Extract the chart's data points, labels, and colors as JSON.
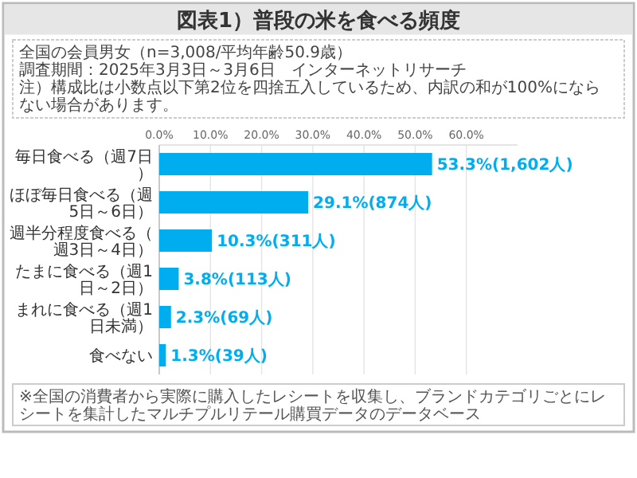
{
  "chart_data": {
    "type": "bar",
    "orientation": "horizontal",
    "title": "図表1）普段の米を食べる頻度",
    "subtitle": "全国の会員男女（n=3,008/平均年齢50.9歳）",
    "annotations": [
      "調査期間：2025年3月3日～3月6日　インターネットリサーチ",
      "注）構成比は小数点以下第2位を四捨五入しているため、内訳の和が100%にならない場合があります。",
      "※全国の消費者から実際に購入したレシートを収集し、ブランドカテゴリごとにレシートを集計したマルチプルリテール購買データのデータベース"
    ],
    "categories": [
      "毎日食べる（週7日）",
      "ほぼ毎日食べる（週5日～6日）",
      "週半分程度食べる（週3日～4日）",
      "たまに食べる（週1日～2日）",
      "まれに食べる（週1日未満）",
      "食べない"
    ],
    "values": [
      53.3,
      29.1,
      10.3,
      3.8,
      2.3,
      1.3
    ],
    "value_labels": [
      "53.3%(1,602人)",
      "29.1%(874人)",
      "10.3%(311人)",
      "3.8%(113人)",
      "2.3%(69人)",
      "1.3%(39人)"
    ],
    "color": "#00aeef",
    "xlim": [
      0,
      70
    ],
    "xticks": [
      {
        "value": 0,
        "label": "0.0%"
      },
      {
        "value": 10,
        "label": "10.0%"
      },
      {
        "value": 20,
        "label": "20.0%"
      },
      {
        "value": 30,
        "label": "30.0%"
      },
      {
        "value": 40,
        "label": "40.0%"
      },
      {
        "value": 50,
        "label": "50.0%"
      },
      {
        "value": 60,
        "label": "60.0%"
      }
    ],
    "grid": "x"
  }
}
